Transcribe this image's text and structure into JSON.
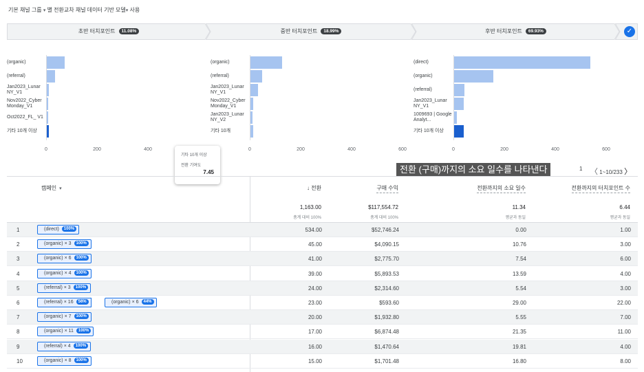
{
  "header": {
    "text": "기본 채널 그룹",
    "mid": "별 전환교차 채널 데이터 기반 모델",
    "suffix": "사용",
    "dropdown_glyph": "▾"
  },
  "stages": [
    {
      "label": "초반 터치포인트",
      "pct": "11.08%"
    },
    {
      "label": "중반 터치포인트",
      "pct": "18.99%"
    },
    {
      "label": "후반 터치포인트",
      "pct": "69.93%"
    }
  ],
  "check_glyph": "✓",
  "panels": [
    {
      "rows": [
        {
          "label": "(organic)",
          "value": 70,
          "dark": false
        },
        {
          "label": "(referral)",
          "value": 33,
          "dark": false
        },
        {
          "label": "Jan2023_Lunar NY_V1",
          "value": 8,
          "dark": false
        },
        {
          "label": "Nov2022_Cyber Monday_V1",
          "value": 3,
          "dark": false
        },
        {
          "label": "Oct2022_FL_ V1",
          "value": 2,
          "dark": false
        },
        {
          "label": "기타 10개 이상",
          "value": 7.45,
          "dark": true
        }
      ],
      "ticks": [
        "0",
        "200",
        "400"
      ]
    },
    {
      "rows": [
        {
          "label": "(organic)",
          "value": 123,
          "dark": false
        },
        {
          "label": "(referral)",
          "value": 47,
          "dark": false
        },
        {
          "label": "Jan2023_Lunar NY_V1",
          "value": 30,
          "dark": false
        },
        {
          "label": "Nov2022_Cyber Monday_V1",
          "value": 10,
          "dark": false
        },
        {
          "label": "Jan2023_Lunar NY_V2",
          "value": 8,
          "dark": false
        },
        {
          "label": "기타 10개",
          "value": 10,
          "dark": false
        }
      ],
      "ticks": [
        "0",
        "200",
        "400",
        "600"
      ]
    },
    {
      "rows": [
        {
          "label": "(direct)",
          "value": 534,
          "dark": false
        },
        {
          "label": "(organic)",
          "value": 153,
          "dark": false
        },
        {
          "label": "(referral)",
          "value": 40,
          "dark": false
        },
        {
          "label": "Jan2023_Lunar NY_V1",
          "value": 37,
          "dark": false
        },
        {
          "label": "1009693 | Google Analyt...",
          "value": 10,
          "dark": false
        },
        {
          "label": "기타 10개 이상",
          "value": 38,
          "dark": true
        }
      ],
      "ticks": [
        "0",
        "200",
        "400",
        "600"
      ]
    }
  ],
  "tooltip": {
    "title": "기타 10개 이상",
    "metric": "전환 기여도",
    "value": "7.45"
  },
  "hint": "전환 (구매)까지의 소요 일수를 나타낸다",
  "pager": {
    "page": "1",
    "range": "1~10/233",
    "prev": "〈",
    "next": "〉"
  },
  "table": {
    "campaign_header": "캠페인",
    "columns": [
      {
        "label": "↓ 전환",
        "total": "1,163.00",
        "sub": "총계 대비 100%"
      },
      {
        "label": "구매 수익",
        "total": "$117,554.72",
        "sub": "총계 대비 100%"
      },
      {
        "label": "전환까지의 소요 일수",
        "total": "11.34",
        "sub": "평균과 동일"
      },
      {
        "label": "전환까지의 터치포인트 수",
        "total": "6.44",
        "sub": "평균과 동일"
      }
    ],
    "rows": [
      {
        "idx": "1",
        "chips": [
          {
            "text": "(direct)",
            "pct": "100%"
          }
        ],
        "conv": "534.00",
        "rev": "$52,746.24",
        "days": "0.00",
        "tp": "1.00"
      },
      {
        "idx": "2",
        "chips": [
          {
            "text": "(organic) × 3",
            "pct": "100%"
          }
        ],
        "conv": "45.00",
        "rev": "$4,090.15",
        "days": "10.76",
        "tp": "3.00"
      },
      {
        "idx": "3",
        "chips": [
          {
            "text": "(organic) × 6",
            "pct": "100%"
          }
        ],
        "conv": "41.00",
        "rev": "$2,775.70",
        "days": "7.54",
        "tp": "6.00"
      },
      {
        "idx": "4",
        "chips": [
          {
            "text": "(organic) × 4",
            "pct": "100%"
          }
        ],
        "conv": "39.00",
        "rev": "$5,893.53",
        "days": "13.59",
        "tp": "4.00"
      },
      {
        "idx": "5",
        "chips": [
          {
            "text": "(referral) × 3",
            "pct": "100%"
          }
        ],
        "conv": "24.00",
        "rev": "$2,314.60",
        "days": "5.54",
        "tp": "3.00"
      },
      {
        "idx": "6",
        "chips": [
          {
            "text": "(referral) × 16",
            "pct": "56%"
          },
          {
            "text": "(organic) × 6",
            "pct": "44%"
          }
        ],
        "conv": "23.00",
        "rev": "$593.60",
        "days": "29.00",
        "tp": "22.00"
      },
      {
        "idx": "7",
        "chips": [
          {
            "text": "(organic) × 7",
            "pct": "100%"
          }
        ],
        "conv": "20.00",
        "rev": "$1,932.80",
        "days": "5.55",
        "tp": "7.00"
      },
      {
        "idx": "8",
        "chips": [
          {
            "text": "(organic) × 11",
            "pct": "100%"
          }
        ],
        "conv": "17.00",
        "rev": "$6,874.48",
        "days": "21.35",
        "tp": "11.00"
      },
      {
        "idx": "9",
        "chips": [
          {
            "text": "(referral) × 4",
            "pct": "100%"
          }
        ],
        "conv": "16.00",
        "rev": "$1,470.64",
        "days": "19.81",
        "tp": "4.00"
      },
      {
        "idx": "10",
        "chips": [
          {
            "text": "(organic) × 8",
            "pct": "100%"
          }
        ],
        "conv": "15.00",
        "rev": "$1,701.48",
        "days": "16.80",
        "tp": "8.00"
      }
    ]
  }
}
